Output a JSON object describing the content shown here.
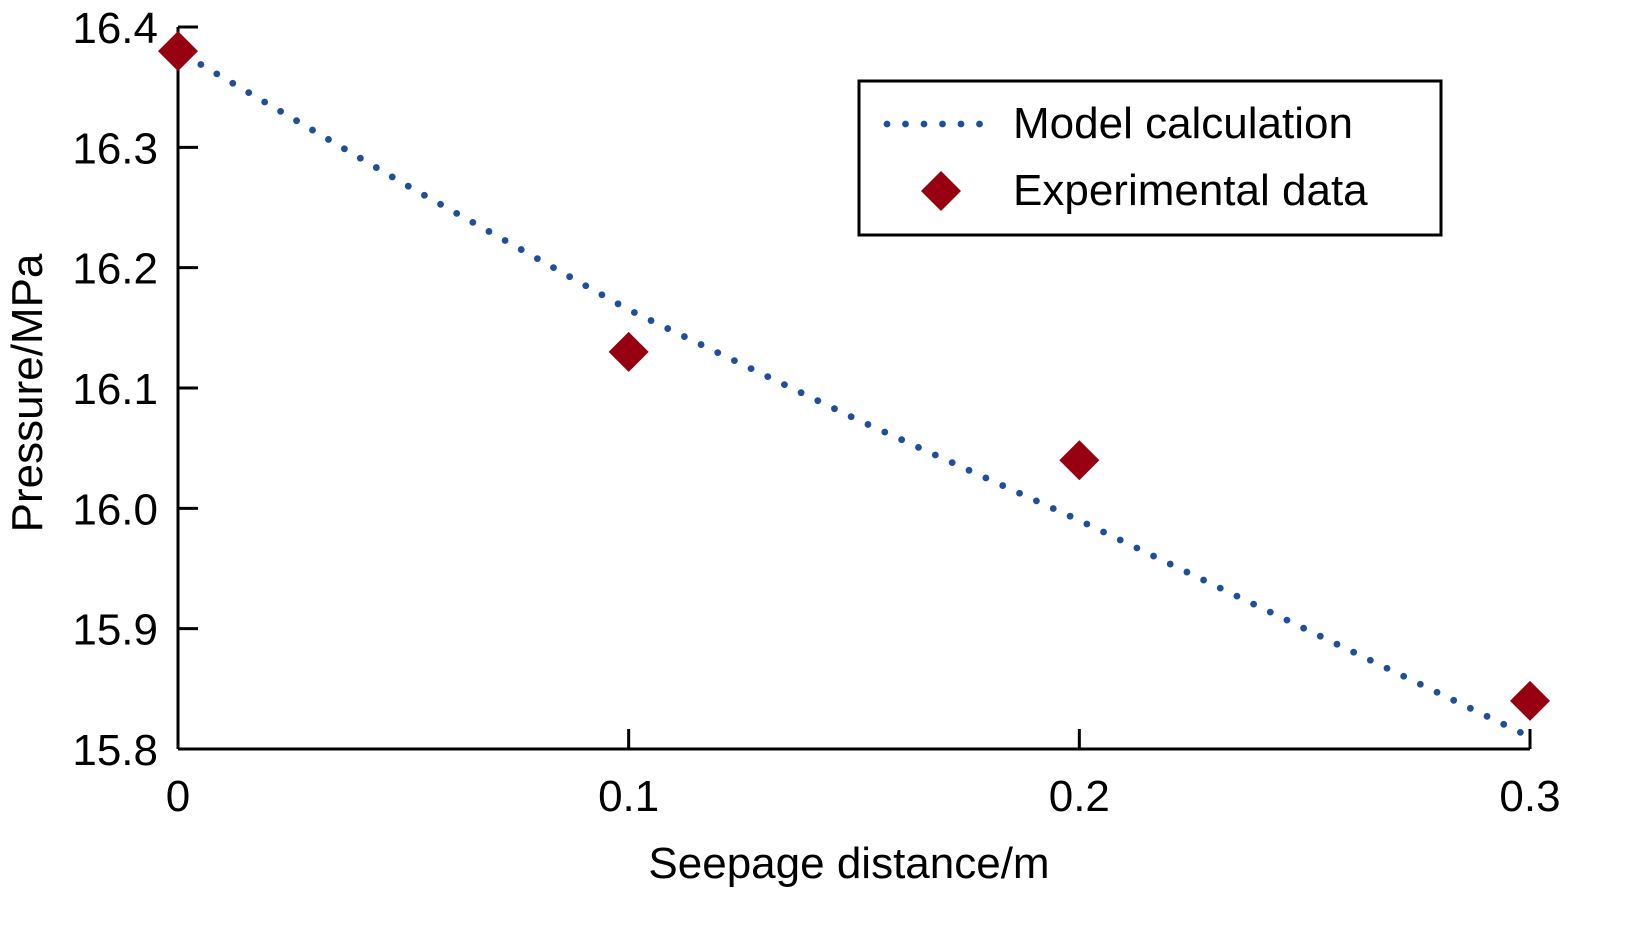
{
  "chart_data": {
    "type": "scatter",
    "title": "",
    "xlabel": "Seepage distance/m",
    "ylabel": "Pressure/MPa",
    "xlim": [
      0,
      0.3
    ],
    "ylim": [
      15.8,
      16.4
    ],
    "xticks": [
      0,
      0.1,
      0.2,
      0.3
    ],
    "xtick_labels": [
      "0",
      "0.1",
      "0.2",
      "0.3"
    ],
    "yticks": [
      15.8,
      15.9,
      16.0,
      16.1,
      16.2,
      16.3,
      16.4
    ],
    "ytick_labels": [
      "15.8",
      "15.9",
      "16.0",
      "16.1",
      "16.2",
      "16.3",
      "16.4"
    ],
    "grid": false,
    "legend_position": "top-right",
    "series": [
      {
        "name": "Model calculation",
        "type": "line",
        "style": "dotted",
        "color": "#1f4e9c",
        "x": [
          0,
          0.05,
          0.1,
          0.15,
          0.2,
          0.25,
          0.3
        ],
        "y": [
          16.38,
          16.27,
          16.165,
          16.075,
          15.99,
          15.9,
          15.81
        ]
      },
      {
        "name": "Experimental data",
        "type": "scatter",
        "marker": "diamond",
        "color": "#960010",
        "x": [
          0,
          0.1,
          0.2,
          0.3
        ],
        "y": [
          16.38,
          16.13,
          16.04,
          15.84
        ]
      }
    ]
  }
}
